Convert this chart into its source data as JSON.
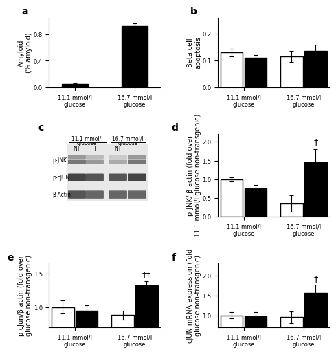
{
  "panel_a": {
    "categories": [
      "11.1 mmol/l\nglucose",
      "16.7 mmol/l\nglucose"
    ],
    "values": [
      0.05,
      0.92
    ],
    "errors": [
      0.01,
      0.04
    ],
    "ylabel": "Amyloid\n(% amyloid)",
    "yticks": [
      0.0,
      0.4,
      0.8
    ],
    "ylim": [
      0,
      1.05
    ],
    "label": "a",
    "bar_colors": [
      "black",
      "black"
    ]
  },
  "panel_b": {
    "categories": [
      "11.1 mmol/l\nglucose",
      "16.7 mmol/l\nglucose"
    ],
    "nt_values": [
      0.13,
      0.115
    ],
    "t_values": [
      0.11,
      0.135
    ],
    "nt_errors": [
      0.015,
      0.02
    ],
    "t_errors": [
      0.01,
      0.025
    ],
    "ylabel": "Beta cell\napoptosis",
    "yticks": [
      0.0,
      0.1,
      0.2
    ],
    "ylim": [
      0,
      0.26
    ],
    "label": "b"
  },
  "panel_c": {
    "label": "c",
    "rows": [
      "p-JNK",
      "p-cJUN",
      "β-Actin"
    ]
  },
  "panel_d": {
    "categories": [
      "11.1 mmol/l\nglucose",
      "16.7 mmol/l\nglucose"
    ],
    "nt_values": [
      1.0,
      0.35
    ],
    "t_values": [
      0.75,
      1.45
    ],
    "nt_errors": [
      0.05,
      0.22
    ],
    "t_errors": [
      0.1,
      0.35
    ],
    "ylabel": "p-JNK/ β-actin (fold over\n11.1 mmol/l glucose non-transgenic)",
    "yticks": [
      0.0,
      0.5,
      1.0,
      1.5,
      2.0
    ],
    "ylim": [
      0,
      2.2
    ],
    "label": "d",
    "annotation": "†",
    "ann_bar_idx": 3
  },
  "panel_e": {
    "categories": [
      "11.1 mmol/l\nglucose",
      "16.7 mmol/l\nglucose"
    ],
    "nt_values": [
      1.0,
      0.88
    ],
    "t_values": [
      0.95,
      1.33
    ],
    "nt_errors": [
      0.1,
      0.07
    ],
    "t_errors": [
      0.08,
      0.06
    ],
    "ylabel": "p-cJun/β-actin (fold over\nglucose non-transgenic)",
    "yticks": [
      1.0,
      1.5
    ],
    "ylim": [
      0.7,
      1.65
    ],
    "label": "e",
    "annotation": "††",
    "ann_bar_idx": 3
  },
  "panel_f": {
    "categories": [
      "11.1 mmol/l\nglucose",
      "16.7 mmol/l\nglucose"
    ],
    "nt_values": [
      1.0,
      0.95
    ],
    "t_values": [
      0.98,
      1.57
    ],
    "nt_errors": [
      0.08,
      0.15
    ],
    "t_errors": [
      0.1,
      0.2
    ],
    "ylabel": "cJUN mRNA expression (fold\nglucose non-transgenic)",
    "yticks": [
      1.0,
      1.5,
      2.0
    ],
    "ylim": [
      0.7,
      2.3
    ],
    "label": "f",
    "annotation": "‡",
    "ann_bar_idx": 3
  },
  "bar_width": 0.28,
  "nt_color": "white",
  "t_color": "black",
  "nt_edgecolor": "black",
  "t_edgecolor": "black",
  "fontsize_label": 7,
  "fontsize_tick": 6,
  "fontsize_panel": 10,
  "fontsize_ann": 9
}
